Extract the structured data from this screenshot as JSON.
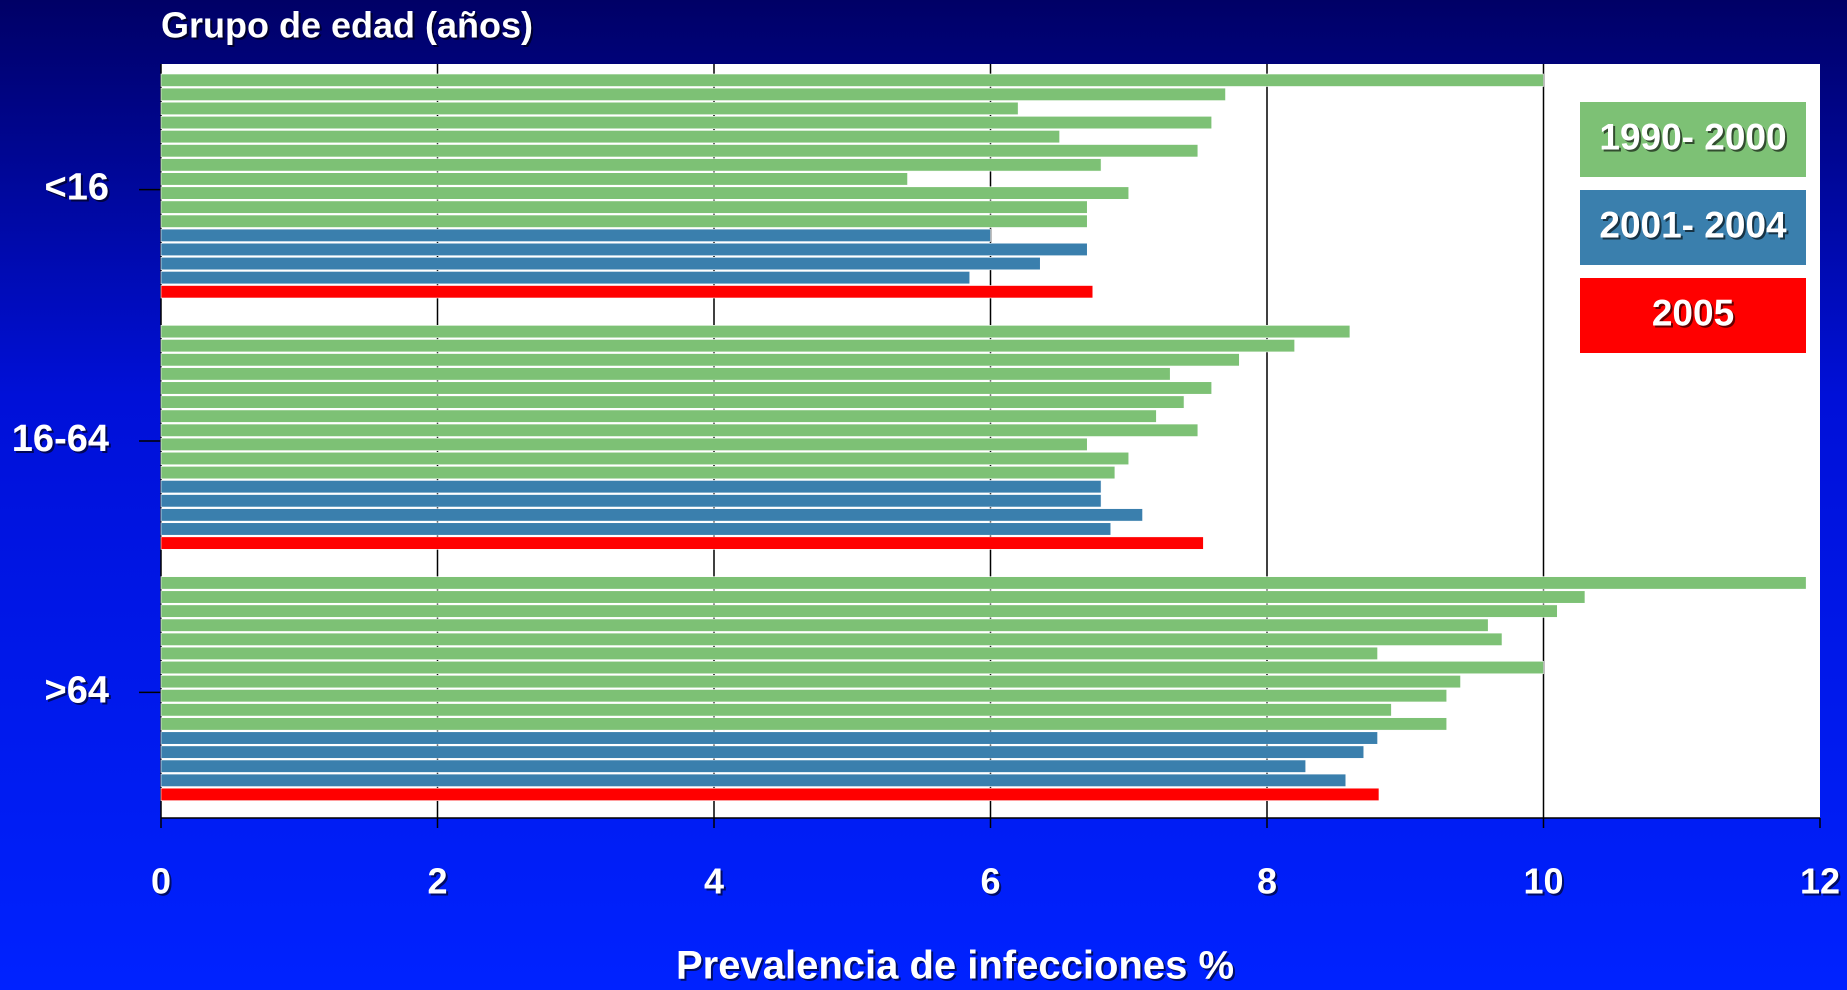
{
  "chart_data": {
    "type": "bar",
    "orientation": "horizontal",
    "title": "Grupo de edad (años)",
    "x_label": "Prevalencia de infecciones %",
    "categories": [
      "<16",
      "16-64",
      ">64"
    ],
    "series": [
      {
        "name": "1990- 2000",
        "color": "#7dc175",
        "values": [
          [
            10.0,
            7.7,
            6.2,
            7.6,
            6.5,
            7.5,
            6.8,
            5.4,
            7.0,
            6.7,
            6.7
          ],
          [
            8.6,
            8.2,
            7.8,
            7.3,
            7.6,
            7.4,
            7.2,
            7.5,
            6.7,
            7.0,
            6.9
          ],
          [
            11.9,
            10.3,
            10.1,
            9.6,
            9.7,
            8.8,
            10.0,
            9.4,
            9.3,
            8.9,
            9.3
          ]
        ]
      },
      {
        "name": "2001- 2004",
        "color": "#3a7fad",
        "values": [
          [
            6.0,
            6.7,
            6.36,
            5.85
          ],
          [
            6.8,
            6.8,
            7.1,
            6.87
          ],
          [
            8.8,
            8.7,
            8.28,
            8.57
          ]
        ]
      },
      {
        "name": "2005",
        "color": "#ff0000",
        "values": [
          [
            6.74
          ],
          [
            7.54
          ],
          [
            8.81
          ]
        ]
      }
    ],
    "xlim": [
      0,
      12
    ],
    "xticks": [
      0,
      2,
      4,
      6,
      8,
      10,
      12
    ],
    "grid": true,
    "legend": "upper right"
  }
}
